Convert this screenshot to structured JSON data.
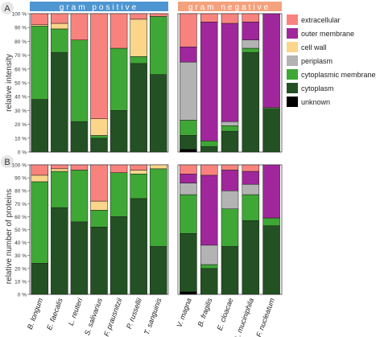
{
  "colors": {
    "extracellular": "#F8837E",
    "outer membrane": "#A0279B",
    "cell wall": "#FBD58A",
    "periplasm": "#B3B3B3",
    "cytoplasmic membrane": "#3FA735",
    "cytoplasm": "#235123",
    "unknown": "#000000",
    "gram_positive_banner": "#4E96D1",
    "gram_negative_banner": "#F4A27E"
  },
  "panels": {
    "A": {
      "letter": "A",
      "ylabel": "relative intensity"
    },
    "B": {
      "letter": "B",
      "ylabel": "relative number of proteins"
    }
  },
  "groups": {
    "positive": {
      "label": "gram positive"
    },
    "negative": {
      "label": "gram negative"
    }
  },
  "legend": [
    {
      "label": "extracellular",
      "key": "extracellular"
    },
    {
      "label": "outer membrane",
      "key": "outer membrane"
    },
    {
      "label": "cell wall",
      "key": "cell wall"
    },
    {
      "label": "periplasm",
      "key": "periplasm"
    },
    {
      "label": "cytoplasmic membrane",
      "key": "cytoplasmic membrane"
    },
    {
      "label": "cytoplasm",
      "key": "cytoplasm"
    },
    {
      "label": "unknown",
      "key": "unknown"
    }
  ],
  "chart_data": [
    {
      "type": "bar",
      "stacked": true,
      "panel": "A",
      "ylabel": "relative intensity",
      "ylim": [
        0,
        100
      ],
      "yticks": [
        "0 %",
        "10 %",
        "20 %",
        "30 %",
        "40 %",
        "50 %",
        "60 %",
        "70 %",
        "80 %",
        "90 %",
        "100 %"
      ],
      "categories_positive": [
        "B. longum",
        "E. faecalis",
        "L. reuteri",
        "S. salivarius",
        "F. prausnitzii",
        "P. russellii",
        "T. sanguinis"
      ],
      "categories_negative": [
        "V. magna",
        "B. fragilis",
        "E. cloacae",
        "A. muciniphila",
        "F. nucleatum"
      ],
      "series": [
        {
          "name": "unknown",
          "positive": [
            0,
            0,
            0,
            0,
            0,
            0,
            0
          ],
          "negative": [
            2,
            0,
            0,
            0,
            0
          ]
        },
        {
          "name": "cytoplasm",
          "positive": [
            38,
            72,
            22,
            10,
            30,
            64,
            56
          ],
          "negative": [
            10,
            4,
            15,
            72,
            31
          ]
        },
        {
          "name": "cytoplasmic membrane",
          "positive": [
            53,
            17,
            59,
            2,
            45,
            5,
            42
          ],
          "negative": [
            11,
            4,
            4,
            3,
            1
          ]
        },
        {
          "name": "periplasm",
          "positive": [
            0,
            0,
            0,
            0,
            0,
            0,
            0
          ],
          "negative": [
            42,
            0,
            3,
            6,
            0
          ]
        },
        {
          "name": "cell wall",
          "positive": [
            1,
            4,
            0,
            12,
            0,
            27,
            0
          ],
          "negative": [
            0,
            0,
            0,
            0,
            0
          ]
        },
        {
          "name": "outer membrane",
          "positive": [
            0,
            0,
            0,
            0,
            0,
            0,
            0
          ],
          "negative": [
            11,
            86,
            71,
            13,
            68
          ]
        },
        {
          "name": "extracellular",
          "positive": [
            8,
            7,
            19,
            76,
            25,
            4,
            2
          ],
          "negative": [
            24,
            6,
            7,
            6,
            0
          ]
        }
      ]
    },
    {
      "type": "bar",
      "stacked": true,
      "panel": "B",
      "ylabel": "relative number of proteins",
      "ylim": [
        0,
        100
      ],
      "yticks": [
        "0 %",
        "10 %",
        "20 %",
        "30 %",
        "40 %",
        "50 %",
        "60 %",
        "70 %",
        "80 %",
        "90 %",
        "100 %"
      ],
      "categories_positive": [
        "B. longum",
        "E. faecalis",
        "L. reuteri",
        "S. salivarius",
        "F. prausnitzii",
        "P. russellii",
        "T. sanguinis"
      ],
      "categories_negative": [
        "V. magna",
        "B. fragilis",
        "E. cloacae",
        "A. muciniphila",
        "F. nucleatum"
      ],
      "series": [
        {
          "name": "unknown",
          "positive": [
            0,
            0,
            0,
            0,
            0,
            0,
            0
          ],
          "negative": [
            2,
            0,
            0,
            0,
            0
          ]
        },
        {
          "name": "cytoplasm",
          "positive": [
            24,
            67,
            56,
            52,
            60,
            74,
            37
          ],
          "negative": [
            45,
            20,
            37,
            57,
            53
          ]
        },
        {
          "name": "cytoplasmic membrane",
          "positive": [
            63,
            28,
            40,
            13,
            34,
            19,
            60
          ],
          "negative": [
            30,
            3,
            29,
            20,
            6
          ]
        },
        {
          "name": "periplasm",
          "positive": [
            0,
            0,
            0,
            0,
            0,
            0,
            0
          ],
          "negative": [
            9,
            15,
            14,
            8,
            0
          ]
        },
        {
          "name": "cell wall",
          "positive": [
            5,
            2,
            0,
            7,
            0,
            3,
            3
          ],
          "negative": [
            0,
            0,
            0,
            0,
            0
          ]
        },
        {
          "name": "outer membrane",
          "positive": [
            0,
            0,
            0,
            0,
            0,
            0,
            0
          ],
          "negative": [
            7,
            54,
            16,
            10,
            41
          ]
        },
        {
          "name": "extracellular",
          "positive": [
            8,
            3,
            4,
            28,
            6,
            4,
            0
          ],
          "negative": [
            7,
            8,
            4,
            5,
            0
          ]
        }
      ]
    }
  ],
  "xlabels_positive": [
    "B. longum",
    "E. faecalis",
    "L. reuteri",
    "S. salivarius",
    "F. prausnitzii",
    "P. russellii",
    "T. sanguinis"
  ],
  "xlabels_negative": [
    "V. magna",
    "B. fragilis",
    "E. cloacae",
    "A. muciniphila",
    "F. nucleatum"
  ]
}
